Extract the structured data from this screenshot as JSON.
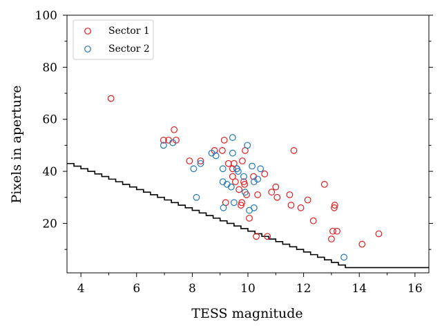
{
  "chart_data": {
    "type": "scatter",
    "xlabel": "TESS magnitude",
    "ylabel": "Pixels in aperture",
    "xlim": [
      3.5,
      16.5
    ],
    "ylim": [
      1,
      100
    ],
    "x_ticks": [
      "4",
      "6",
      "8",
      "10",
      "12",
      "14",
      "16"
    ],
    "y_ticks": [
      "20",
      "40",
      "60",
      "80",
      "100"
    ],
    "grid": false,
    "legend_position": "top-left",
    "series": [
      {
        "name": "Sector 1",
        "marker": "open-circle",
        "color": "#e31a1c",
        "points": [
          [
            5.08,
            68
          ],
          [
            6.97,
            52
          ],
          [
            7.15,
            52
          ],
          [
            7.35,
            56
          ],
          [
            7.42,
            52
          ],
          [
            7.9,
            44
          ],
          [
            8.3,
            44
          ],
          [
            8.8,
            48
          ],
          [
            9.08,
            48
          ],
          [
            9.15,
            52
          ],
          [
            9.3,
            43
          ],
          [
            9.45,
            41
          ],
          [
            9.45,
            38
          ],
          [
            9.5,
            43
          ],
          [
            9.55,
            36
          ],
          [
            9.6,
            41
          ],
          [
            9.68,
            33
          ],
          [
            9.75,
            27
          ],
          [
            9.78,
            28
          ],
          [
            9.8,
            44
          ],
          [
            9.85,
            36
          ],
          [
            9.88,
            35
          ],
          [
            9.9,
            48
          ],
          [
            9.95,
            31
          ],
          [
            10.05,
            22
          ],
          [
            10.2,
            38
          ],
          [
            10.3,
            15
          ],
          [
            10.35,
            31
          ],
          [
            10.6,
            39
          ],
          [
            10.7,
            15
          ],
          [
            10.85,
            32
          ],
          [
            11.0,
            34
          ],
          [
            11.05,
            30
          ],
          [
            11.5,
            31
          ],
          [
            11.55,
            27
          ],
          [
            11.65,
            48
          ],
          [
            11.9,
            26
          ],
          [
            12.15,
            29
          ],
          [
            12.35,
            21
          ],
          [
            12.75,
            35
          ],
          [
            13.0,
            14
          ],
          [
            13.05,
            17
          ],
          [
            13.1,
            26
          ],
          [
            13.12,
            27
          ],
          [
            13.2,
            17
          ],
          [
            14.1,
            12
          ],
          [
            14.7,
            16
          ],
          [
            9.2,
            28
          ]
        ]
      },
      {
        "name": "Sector 2",
        "marker": "open-circle",
        "color": "#1f77b4",
        "points": [
          [
            6.97,
            50
          ],
          [
            7.3,
            51
          ],
          [
            8.05,
            41
          ],
          [
            8.15,
            30
          ],
          [
            8.3,
            43
          ],
          [
            8.7,
            47
          ],
          [
            8.85,
            46
          ],
          [
            9.1,
            41
          ],
          [
            9.1,
            36
          ],
          [
            9.12,
            26
          ],
          [
            9.25,
            35
          ],
          [
            9.4,
            34
          ],
          [
            9.45,
            53
          ],
          [
            9.45,
            47
          ],
          [
            9.5,
            28
          ],
          [
            9.6,
            41
          ],
          [
            9.65,
            40
          ],
          [
            9.85,
            38
          ],
          [
            9.9,
            32
          ],
          [
            9.98,
            50
          ],
          [
            10.05,
            25
          ],
          [
            10.15,
            42
          ],
          [
            10.22,
            36
          ],
          [
            10.22,
            26
          ],
          [
            10.35,
            37
          ],
          [
            10.45,
            41
          ],
          [
            13.45,
            7
          ]
        ]
      }
    ],
    "limit_line": {
      "style": "step",
      "color": "#000000",
      "x": [
        3.5,
        3.75,
        4.0,
        4.25,
        4.5,
        4.75,
        5.0,
        5.25,
        5.5,
        5.75,
        6.0,
        6.25,
        6.5,
        6.75,
        7.0,
        7.25,
        7.5,
        7.75,
        8.0,
        8.25,
        8.5,
        8.75,
        9.0,
        9.25,
        9.5,
        9.75,
        10.0,
        10.25,
        10.5,
        10.75,
        11.0,
        11.25,
        11.5,
        11.75,
        12.0,
        12.25,
        12.5,
        12.75,
        13.0,
        13.25,
        13.5,
        13.75,
        14.0,
        16.5
      ],
      "y": [
        43,
        42,
        41,
        40,
        39,
        38,
        37,
        36,
        35,
        34,
        33,
        32,
        31,
        30,
        29,
        28,
        27,
        26,
        25,
        24,
        23,
        22,
        21,
        20,
        19,
        18,
        17,
        16,
        15,
        14,
        13,
        12,
        11,
        10,
        9,
        8,
        7,
        6,
        5,
        4,
        3,
        3,
        3,
        3
      ]
    }
  }
}
